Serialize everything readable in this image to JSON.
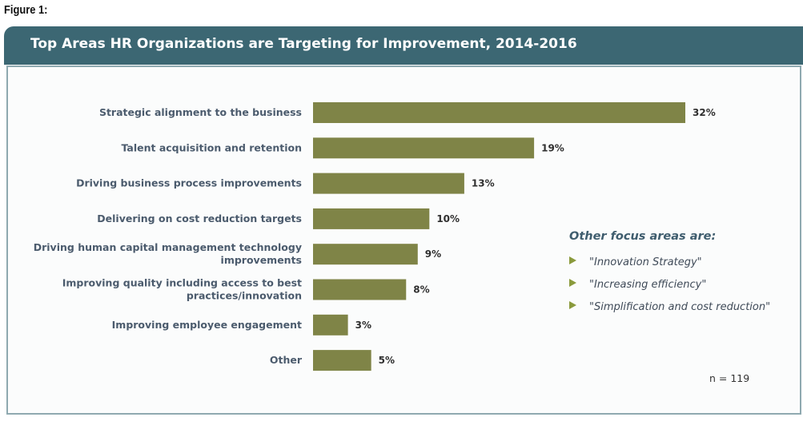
{
  "figure_label": "Figure 1:",
  "header": {
    "title": "Top Areas HR Organizations are Targeting for Improvement, 2014-2016"
  },
  "chart_data": {
    "type": "bar",
    "orientation": "horizontal",
    "title": "Top Areas HR Organizations are Targeting for Improvement, 2014-2016",
    "categories": [
      [
        "Strategic alignment to the business"
      ],
      [
        "Talent acquisition and retention"
      ],
      [
        "Driving business process improvements"
      ],
      [
        "Delivering on cost reduction targets"
      ],
      [
        "Driving human capital management technology",
        "improvements"
      ],
      [
        "Improving quality including access to best",
        "practices/innovation"
      ],
      [
        "Improving employee engagement"
      ],
      [
        "Other"
      ]
    ],
    "values": [
      32,
      19,
      13,
      10,
      9,
      8,
      3,
      5
    ],
    "value_labels": [
      "32%",
      "19%",
      "13%",
      "10%",
      "9%",
      "8%",
      "3%",
      "5%"
    ],
    "bar_color": "#7f8447",
    "grid": false
  },
  "notes": {
    "title": "Other focus areas are:",
    "items": [
      "\"Innovation Strategy\"",
      "\"Increasing efficiency\"",
      "\"Simplification and cost reduction\""
    ]
  },
  "sample_size": "n = 119"
}
